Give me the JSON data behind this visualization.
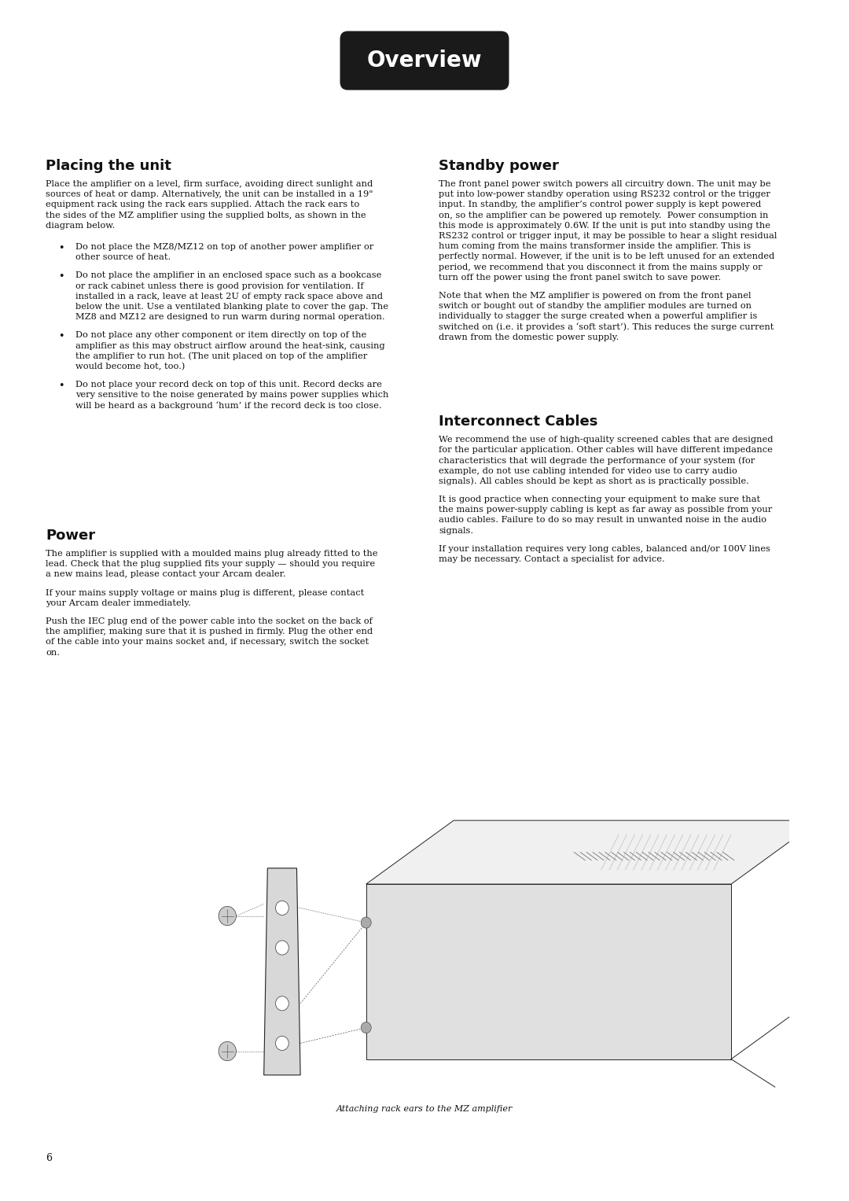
{
  "background_color": "#ffffff",
  "page_number": "6",
  "header_label": "Overview",
  "header_bg": "#1a1a1a",
  "header_text_color": "#ffffff",
  "header_font_size": 20,
  "section_title_font_size": 13,
  "body_font_size": 8.2,
  "caption_font_size": 8,
  "placing_title": "Placing the unit",
  "placing_para1": "Place the amplifier on a level, firm surface, avoiding direct sunlight and\nsources of heat or damp. Alternatively, the unit can be installed in a 19\"\nequipment rack using the rack ears supplied. Attach the rack ears to\nthe sides of the MZ amplifier using the supplied bolts, as shown in the\ndiagram below.",
  "placing_bullets": [
    "Do not place the MZ8/MZ12 on top of another power amplifier or\nother source of heat.",
    "Do not place the amplifier in an enclosed space such as a bookcase\nor rack cabinet unless there is good provision for ventilation. If\ninstalled in a rack, leave at least 2U of empty rack space above and\nbelow the unit. Use a ventilated blanking plate to cover the gap. The\nMZ8 and MZ12 are designed to run warm during normal operation.",
    "Do not place any other component or item directly on top of the\namplifier as this may obstruct airflow around the heat-sink, causing\nthe amplifier to run hot. (The unit placed on top of the amplifier\nwould become hot, too.)",
    "Do not place your record deck on top of this unit. Record decks are\nvery sensitive to the noise generated by mains power supplies which\nwill be heard as a background ‘hum’ if the record deck is too close."
  ],
  "power_title": "Power",
  "power_paras": [
    "The amplifier is supplied with a moulded mains plug already fitted to the\nlead. Check that the plug supplied fits your supply — should you require\na new mains lead, please contact your Arcam dealer.",
    "If your mains supply voltage or mains plug is different, please contact\nyour Arcam dealer immediately.",
    "Push the IEC plug end of the power cable into the socket on the back of\nthe amplifier, making sure that it is pushed in firmly. Plug the other end\nof the cable into your mains socket and, if necessary, switch the socket\non."
  ],
  "standby_title": "Standby power",
  "standby_paras": [
    "The front panel power switch powers all circuitry down. The unit may be\nput into low-power standby operation using RS232 control or the trigger\ninput. In standby, the amplifier’s control power supply is kept powered\non, so the amplifier can be powered up remotely.  Power consumption in\nthis mode is approximately 0.6W. If the unit is put into standby using the\nRS232 control or trigger input, it may be possible to hear a slight residual\nhum coming from the mains transformer inside the amplifier. This is\nperfectly normal. However, if the unit is to be left unused for an extended\nperiod, we recommend that you disconnect it from the mains supply or\nturn off the power using the front panel switch to save power.",
    "Note that when the MZ amplifier is powered on from the front panel\nswitch or bought out of standby the amplifier modules are turned on\nindividually to stagger the surge created when a powerful amplifier is\nswitched on (i.e. it provides a ‘soft start’). This reduces the surge current\ndrawn from the domestic power supply."
  ],
  "interconnect_title": "Interconnect Cables",
  "interconnect_paras": [
    "We recommend the use of high-quality screened cables that are designed\nfor the particular application. Other cables will have different impedance\ncharacteristics that will degrade the performance of your system (for\nexample, do not use cabling intended for video use to carry audio\nsignals). All cables should be kept as short as is practically possible.",
    "It is good practice when connecting your equipment to make sure that\nthe mains power-supply cabling is kept as far away as possible from your\naudio cables. Failure to do so may result in unwanted noise in the audio\nsignals.",
    "If your installation requires very long cables, balanced and/or 100V lines\nmay be necessary. Contact a specialist for advice."
  ],
  "diagram_caption": "Attaching rack ears to the MZ amplifier"
}
